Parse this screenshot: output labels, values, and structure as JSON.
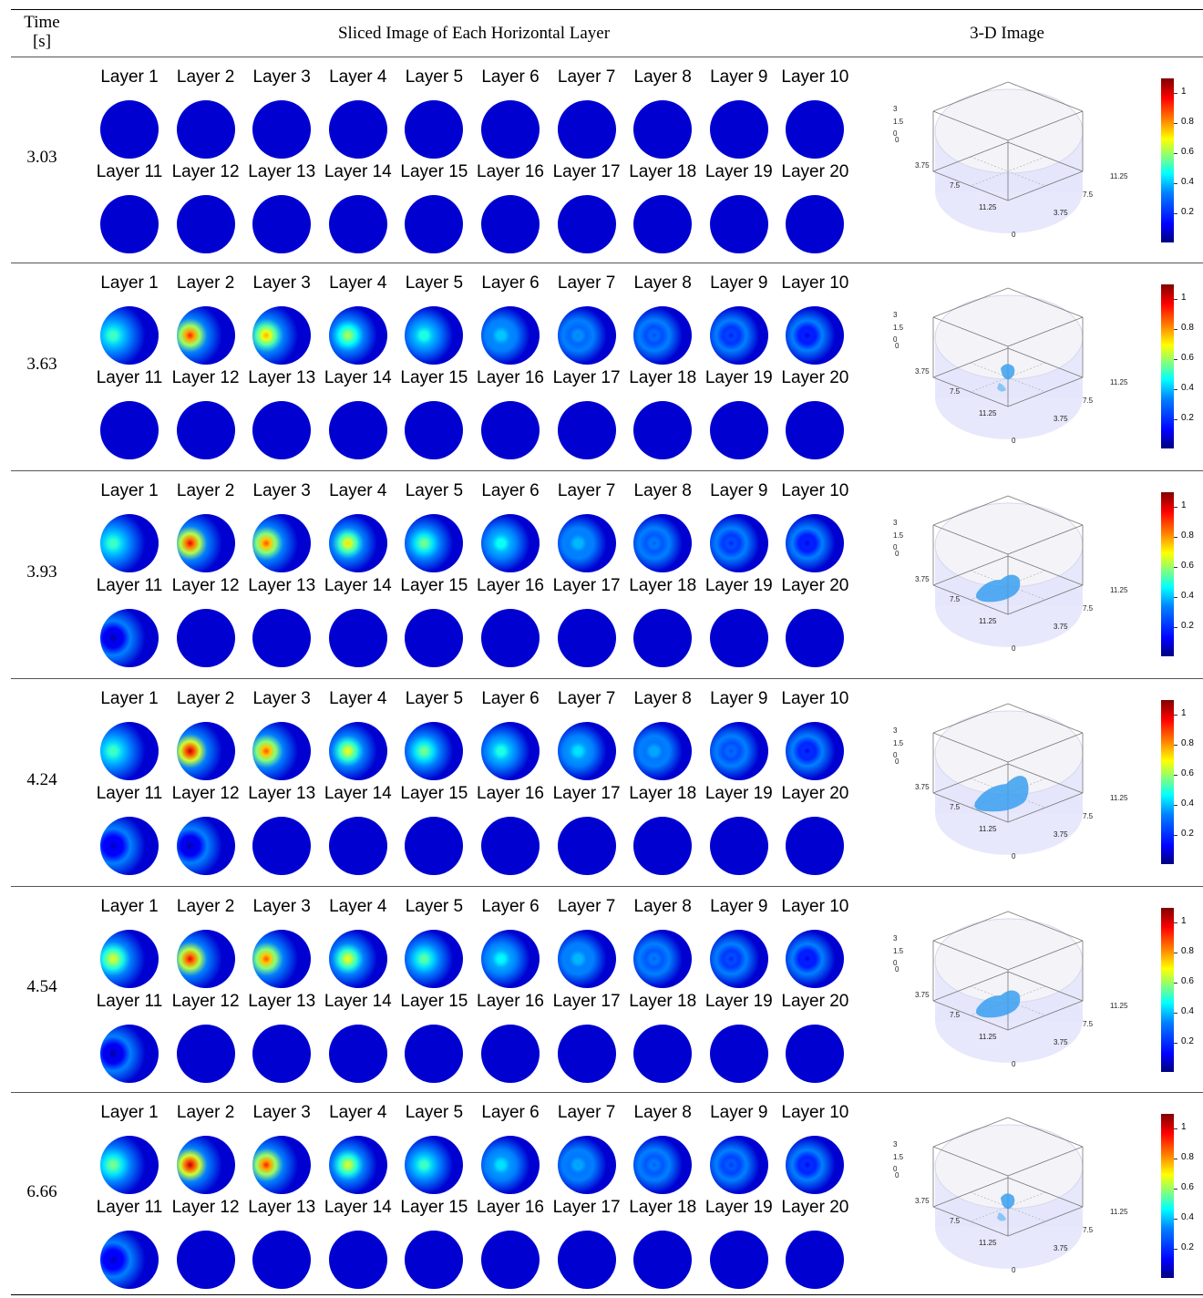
{
  "header": {
    "time_line1": "Time",
    "time_line2": "[s]",
    "slices": "Sliced Image of Each Horizontal Layer",
    "image3d": "3-D Image"
  },
  "layer_labels": [
    "Layer 1",
    "Layer 2",
    "Layer 3",
    "Layer 4",
    "Layer 5",
    "Layer 6",
    "Layer 7",
    "Layer 8",
    "Layer 9",
    "Layer 10",
    "Layer 11",
    "Layer 12",
    "Layer 13",
    "Layer 14",
    "Layer 15",
    "Layer 16",
    "Layer 17",
    "Layer 18",
    "Layer 19",
    "Layer 20"
  ],
  "axis_ticks": {
    "z": [
      "3",
      "1.5",
      "0"
    ],
    "x": [
      "0",
      "3.75",
      "7.5",
      "11.25"
    ],
    "y": [
      "11.25",
      "7.5",
      "3.75",
      "0"
    ]
  },
  "colorbar_ticks": [
    "1",
    "0.8",
    "0.6",
    "0.4",
    "0.2"
  ],
  "colormap": "jet",
  "rows": [
    {
      "time": "3.03",
      "layer_peaks": [
        0,
        0,
        0,
        0,
        0,
        0,
        0,
        0,
        0,
        0,
        0,
        0,
        0,
        0,
        0,
        0,
        0,
        0,
        0,
        0
      ],
      "blob": 0
    },
    {
      "time": "3.63",
      "layer_peaks": [
        0.45,
        0.85,
        0.7,
        0.55,
        0.42,
        0.32,
        0.25,
        0.2,
        0.15,
        0.1,
        0,
        0,
        0,
        0,
        0,
        0,
        0,
        0,
        0,
        0
      ],
      "blob": 1
    },
    {
      "time": "3.93",
      "layer_peaks": [
        0.45,
        0.9,
        0.8,
        0.65,
        0.5,
        0.4,
        0.3,
        0.22,
        0.16,
        0.1,
        0.03,
        0,
        0,
        0,
        0,
        0,
        0,
        0,
        0,
        0
      ],
      "blob": 2
    },
    {
      "time": "4.24",
      "layer_peaks": [
        0.45,
        0.95,
        0.8,
        0.62,
        0.5,
        0.42,
        0.35,
        0.28,
        0.2,
        0.12,
        0.05,
        0.03,
        0,
        0,
        0,
        0,
        0,
        0,
        0,
        0
      ],
      "blob": 3
    },
    {
      "time": "4.54",
      "layer_peaks": [
        0.6,
        0.9,
        0.8,
        0.62,
        0.48,
        0.38,
        0.3,
        0.22,
        0.16,
        0.1,
        0.03,
        0,
        0,
        0,
        0,
        0,
        0,
        0,
        0,
        0
      ],
      "blob": 2
    },
    {
      "time": "6.66",
      "layer_peaks": [
        0.5,
        0.95,
        0.85,
        0.6,
        0.45,
        0.35,
        0.28,
        0.22,
        0.18,
        0.12,
        0.05,
        0,
        0,
        0,
        0,
        0,
        0,
        0,
        0,
        0
      ],
      "blob": 1
    }
  ]
}
